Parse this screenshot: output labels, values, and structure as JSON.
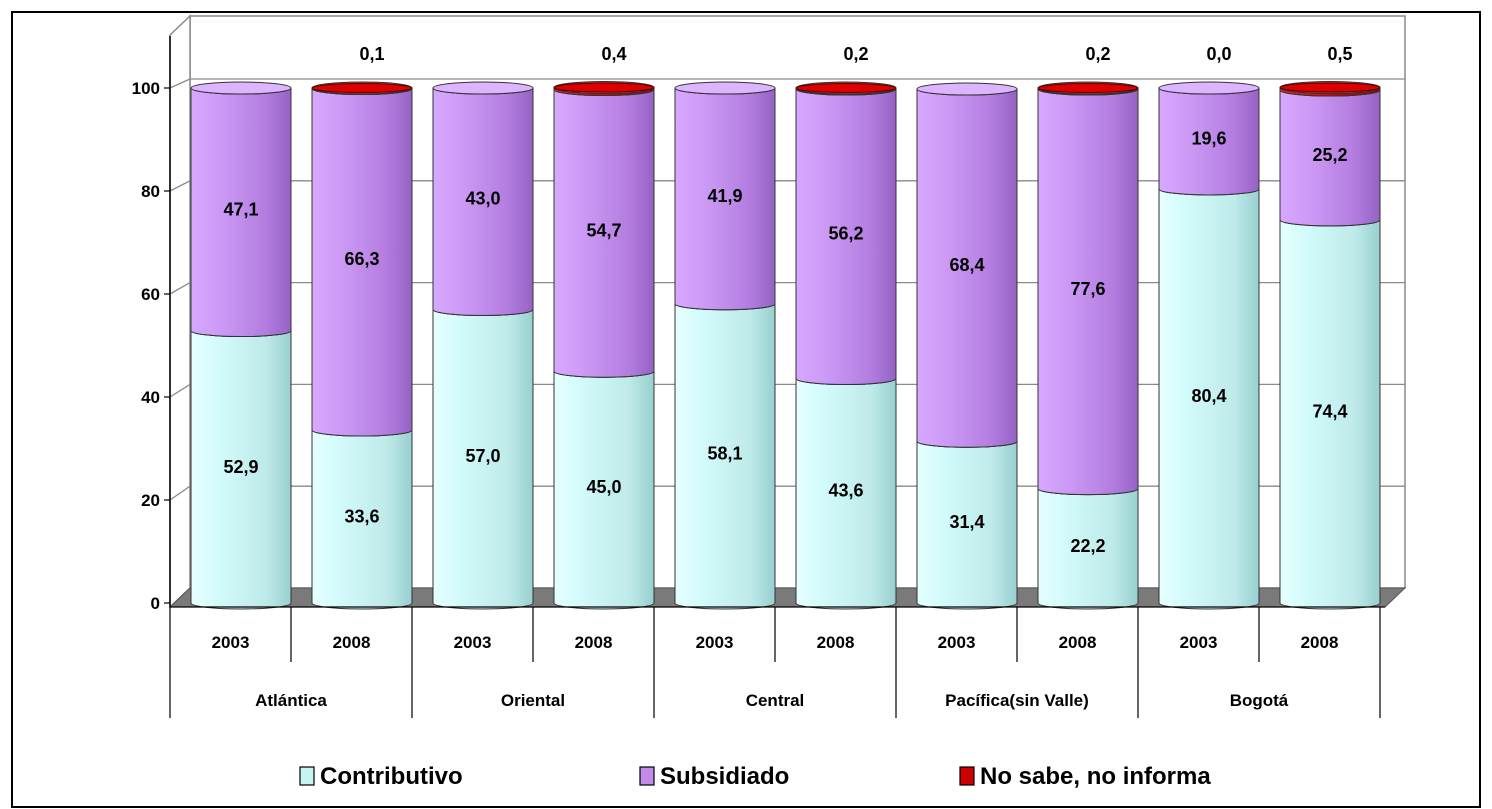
{
  "chart_data": {
    "type": "bar",
    "stacked": true,
    "style": "3d-cylinder",
    "ylim": [
      0,
      100
    ],
    "yticks": [
      "0",
      "20",
      "40",
      "60",
      "80",
      "100"
    ],
    "grid": true,
    "legend_position": "bottom",
    "groups": [
      {
        "label": "Atlántica",
        "years": [
          "2003",
          "2008"
        ]
      },
      {
        "label": "Oriental",
        "years": [
          "2003",
          "2008"
        ]
      },
      {
        "label": "Central",
        "years": [
          "2003",
          "2008"
        ]
      },
      {
        "label": "Pacífica(sin Valle)",
        "years": [
          "2003",
          "2008"
        ]
      },
      {
        "label": "Bogotá",
        "years": [
          "2003",
          "2008"
        ]
      }
    ],
    "series": [
      {
        "name": "Contributivo",
        "color": "#c6f3f3",
        "values": [
          52.9,
          33.6,
          57.0,
          45.0,
          58.1,
          43.6,
          31.4,
          22.2,
          80.4,
          74.4
        ],
        "labels": [
          "52,9",
          "33,6",
          "57,0",
          "45,0",
          "58,1",
          "43,6",
          "31,4",
          "22,2",
          "80,4",
          "74,4"
        ]
      },
      {
        "name": "Subsidiado",
        "color": "#c48ae8",
        "values": [
          47.1,
          66.3,
          43.0,
          54.7,
          41.9,
          56.2,
          68.4,
          77.6,
          19.6,
          25.2
        ],
        "labels": [
          "47,1",
          "66,3",
          "43,0",
          "54,7",
          "41,9",
          "56,2",
          "68,4",
          "77,6",
          "19,6",
          "25,2"
        ]
      },
      {
        "name": "No sabe, no informa",
        "color": "#cc0000",
        "values": [
          null,
          0.1,
          null,
          0.4,
          null,
          0.2,
          null,
          0.2,
          0.0,
          0.5
        ],
        "labels": [
          null,
          "0,1",
          null,
          "0,4",
          null,
          "0,2",
          null,
          "0,2",
          "0,0",
          "0,5"
        ]
      }
    ]
  }
}
